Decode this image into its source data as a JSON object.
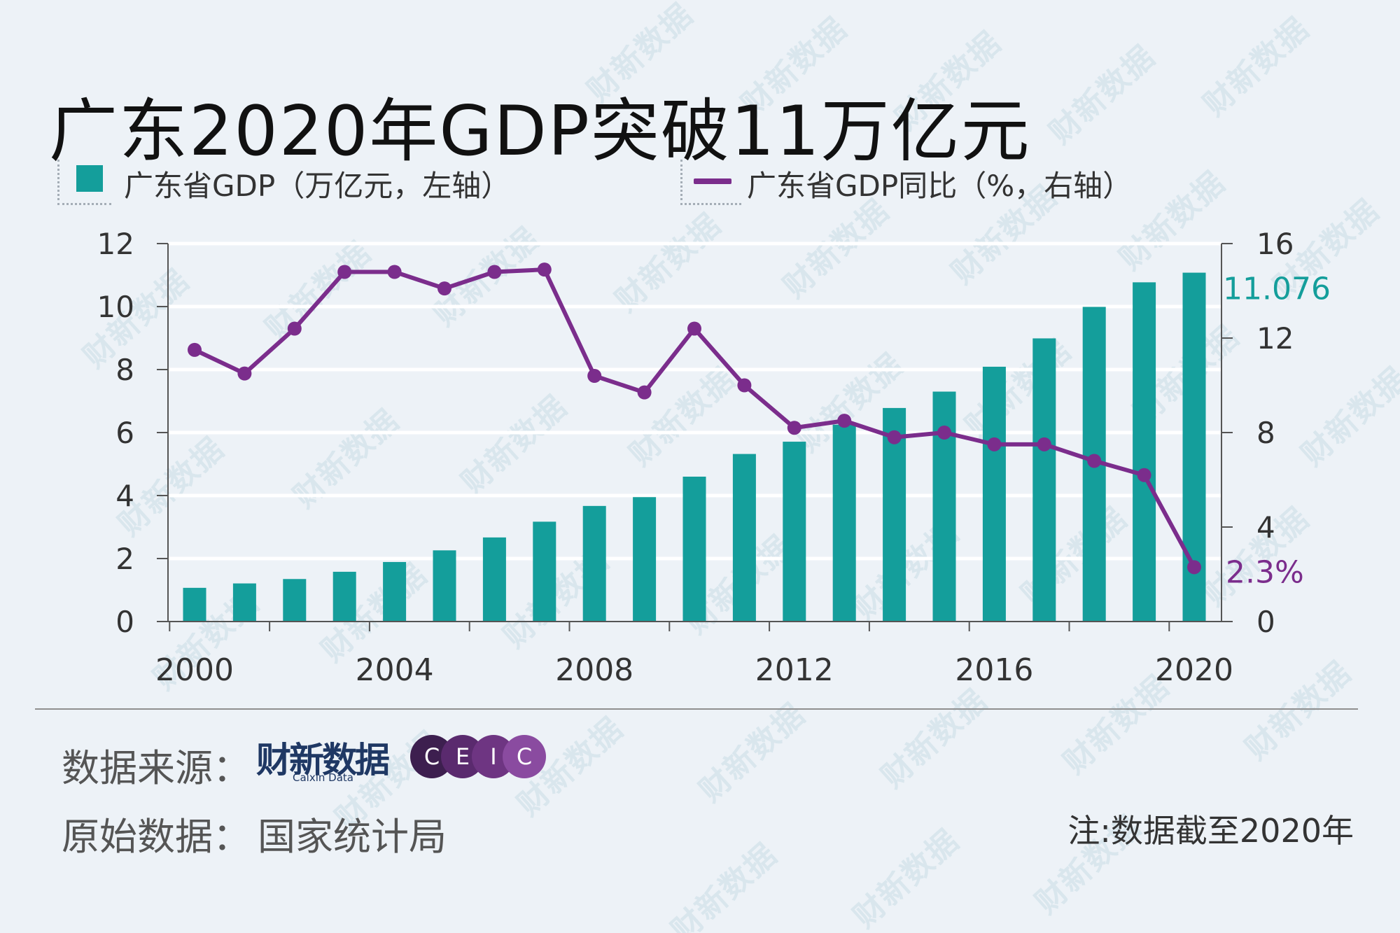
{
  "title": "广东2020年GDP突破11万亿元",
  "legend": {
    "bar_label": "广东省GDP（万亿元，左轴）",
    "line_label": "广东省GDP同比（%，右轴）"
  },
  "colors": {
    "bar": "#149e9b",
    "line": "#7b2d8c",
    "background": "#edf2f7",
    "gridline": "#ffffff",
    "bar_annotation": "#149e9b",
    "line_annotation": "#7b2d8c"
  },
  "chart_data": {
    "type": "bar+line",
    "x": [
      2000,
      2001,
      2002,
      2003,
      2004,
      2005,
      2006,
      2007,
      2008,
      2009,
      2010,
      2011,
      2012,
      2013,
      2014,
      2015,
      2016,
      2017,
      2018,
      2019,
      2020
    ],
    "x_tick_labels": [
      "2000",
      "2004",
      "2008",
      "2012",
      "2016",
      "2020"
    ],
    "series": [
      {
        "name": "广东省GDP（万亿元，左轴）",
        "type": "bar",
        "axis": "left",
        "values": [
          1.07,
          1.21,
          1.35,
          1.58,
          1.89,
          2.26,
          2.67,
          3.17,
          3.67,
          3.95,
          4.6,
          5.32,
          5.71,
          6.25,
          6.78,
          7.3,
          8.09,
          8.99,
          9.99,
          10.77,
          11.076
        ]
      },
      {
        "name": "广东省GDP同比（%，右轴）",
        "type": "line",
        "axis": "right",
        "values": [
          11.5,
          10.5,
          12.4,
          14.8,
          14.8,
          14.1,
          14.8,
          14.9,
          10.4,
          9.7,
          12.4,
          10.0,
          8.2,
          8.5,
          7.8,
          8.0,
          7.5,
          7.5,
          6.8,
          6.2,
          2.3
        ]
      }
    ],
    "y_left": {
      "lim": [
        0,
        12
      ],
      "ticks": [
        0,
        2,
        4,
        6,
        8,
        10,
        12
      ]
    },
    "y_right": {
      "lim": [
        0,
        16
      ],
      "ticks": [
        0,
        4,
        8,
        12,
        16
      ]
    },
    "annotations": [
      {
        "text": "11.076",
        "series": "bar",
        "index": 20
      },
      {
        "text": "2.3%",
        "series": "line",
        "index": 20
      }
    ],
    "grid": "horizontal"
  },
  "footer": {
    "source_label": "数据来源：",
    "caixin_logo_text": "财新数据",
    "caixin_logo_sub": "Caixin Data",
    "ceic_letters": [
      "C",
      "E",
      "I",
      "C"
    ],
    "ceic_colors": [
      "#3d1f4f",
      "#5a2a6e",
      "#6e3582",
      "#8a4ba0"
    ],
    "raw_label": "原始数据：",
    "raw_value": "国家统计局",
    "note": "注:数据截至2020年"
  },
  "watermark_text": "财新数据"
}
